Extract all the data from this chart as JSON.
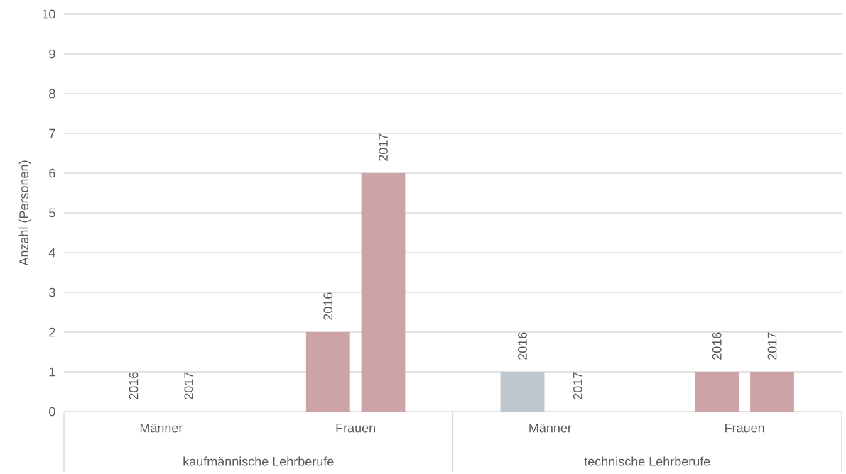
{
  "chart_data": {
    "type": "bar",
    "ylabel": "Anzahl (Personen)",
    "categories": [
      "Männer",
      "Frauen",
      "Männer",
      "Frauen"
    ],
    "series": [
      {
        "name": "2016",
        "values": [
          0,
          2,
          1,
          1
        ],
        "colors": [
          "#bec6ce",
          "#cea3a8",
          "#bec6ce",
          "#cea3a8"
        ]
      },
      {
        "name": "2017",
        "values": [
          0,
          6,
          0,
          1
        ],
        "colors": [
          "#bec6ce",
          "#cea3a8",
          "#bec6ce",
          "#cea3a8"
        ]
      }
    ],
    "annotations": [
      "kaufmännische Lehrberufe",
      "technische Lehrberufe"
    ],
    "ylim": [
      0,
      10
    ],
    "yticks": [
      0,
      1,
      2,
      3,
      4,
      5,
      6,
      7,
      8,
      9,
      10
    ],
    "grid": "y"
  }
}
